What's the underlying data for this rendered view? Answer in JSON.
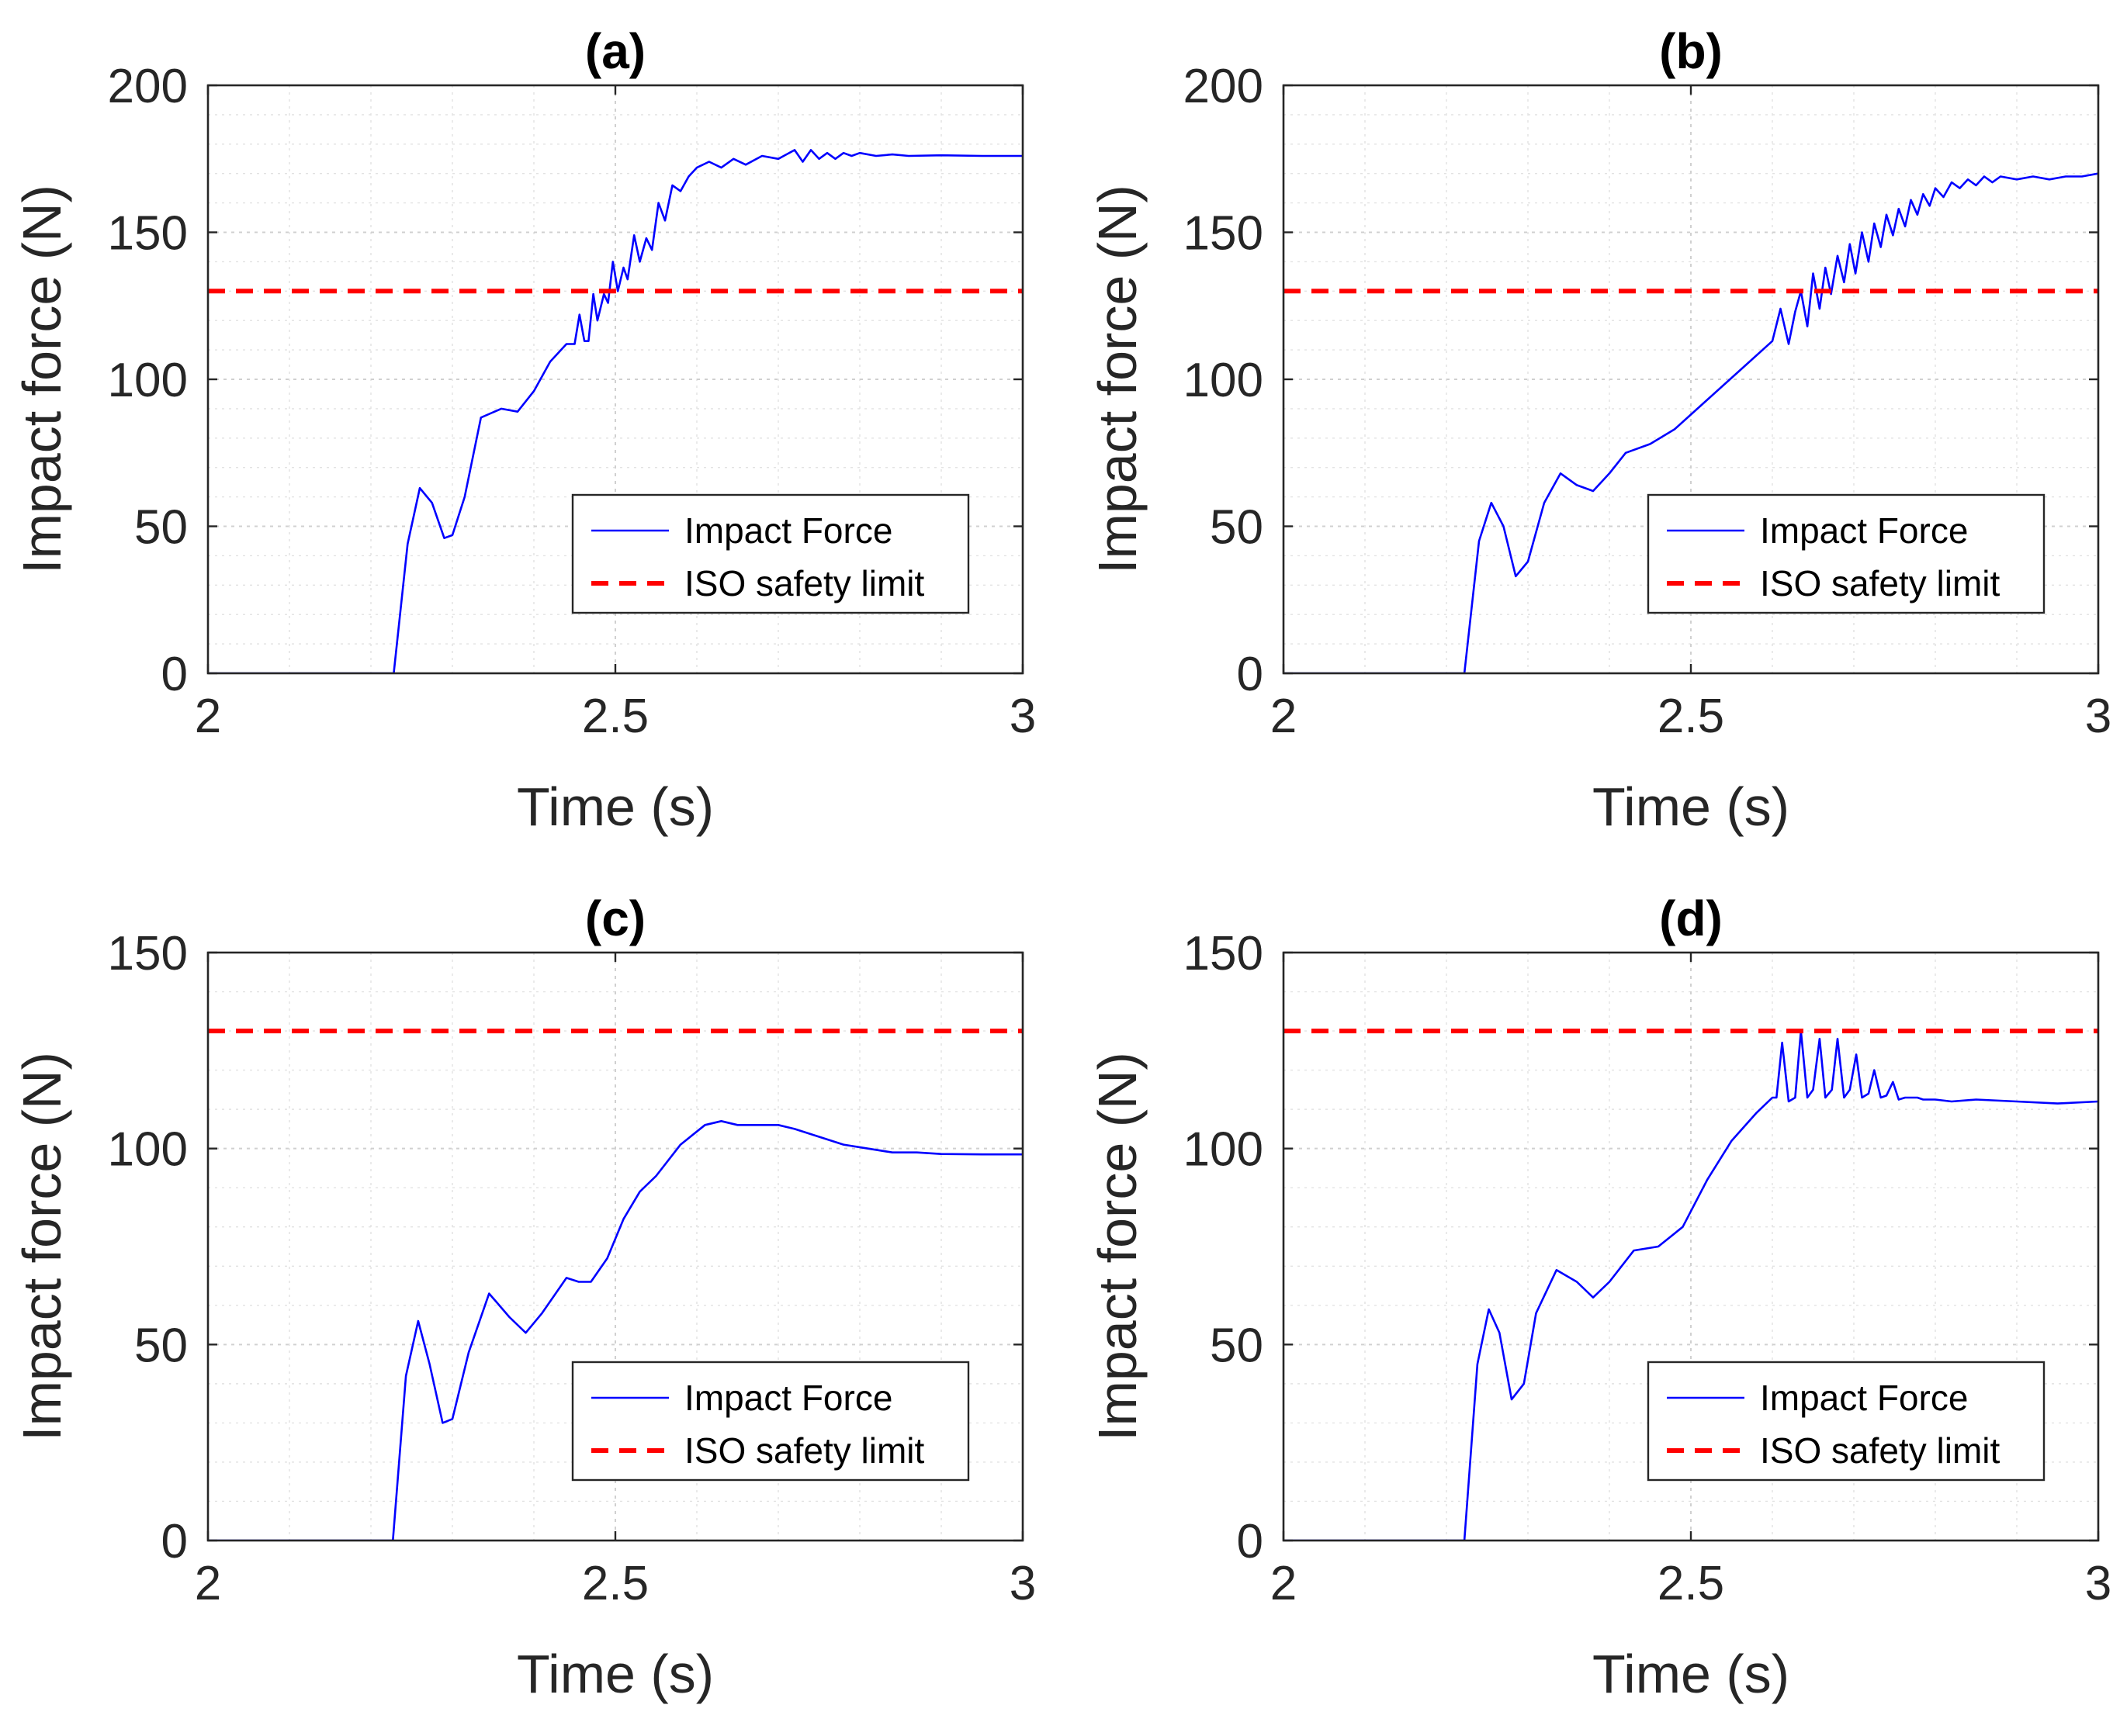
{
  "chart_data": [
    {
      "type": "line",
      "title": "(a)",
      "xlabel": "Time (s)",
      "ylabel": "Impact force (N)",
      "xlim": [
        2,
        3
      ],
      "ylim": [
        0,
        200
      ],
      "xticks": [
        2,
        2.5,
        3
      ],
      "xtick_labels": [
        "2",
        "2.5",
        "3"
      ],
      "yticks": [
        0,
        50,
        100,
        150,
        200
      ],
      "ytick_labels": [
        "0",
        "50",
        "100",
        "150",
        "200"
      ],
      "grid": true,
      "legend_position": "bottom-right",
      "series": [
        {
          "name": "Impact Force",
          "color": "#0000ff",
          "style": "solid",
          "x": [
            2.0,
            2.228,
            2.245,
            2.26,
            2.275,
            2.29,
            2.3,
            2.315,
            2.335,
            2.36,
            2.38,
            2.4,
            2.42,
            2.44,
            2.45,
            2.456,
            2.462,
            2.467,
            2.473,
            2.478,
            2.486,
            2.491,
            2.497,
            2.503,
            2.51,
            2.515,
            2.523,
            2.53,
            2.538,
            2.545,
            2.553,
            2.561,
            2.57,
            2.58,
            2.59,
            2.6,
            2.615,
            2.63,
            2.645,
            2.66,
            2.68,
            2.7,
            2.72,
            2.73,
            2.74,
            2.75,
            2.76,
            2.77,
            2.78,
            2.79,
            2.8,
            2.82,
            2.84,
            2.86,
            2.9,
            2.95,
            3.0
          ],
          "y": [
            0,
            0,
            44,
            63,
            58,
            46,
            47,
            60,
            87,
            90,
            89,
            96,
            106,
            112,
            112,
            122,
            113,
            113,
            129,
            120,
            129,
            126,
            140,
            130,
            138,
            134,
            149,
            140,
            148,
            144,
            160,
            154,
            166,
            164,
            169,
            172,
            174,
            172,
            175,
            173,
            176,
            175,
            178,
            174,
            178,
            175,
            177,
            175,
            177,
            176,
            177,
            176,
            176.5,
            176,
            176.2,
            176,
            176
          ]
        },
        {
          "name": "ISO safety limit",
          "color": "#ff0000",
          "style": "dashed",
          "x": [
            2,
            3
          ],
          "y": [
            130,
            130
          ]
        }
      ]
    },
    {
      "type": "line",
      "title": "(b)",
      "xlabel": "Time (s)",
      "ylabel": "Impact force (N)",
      "xlim": [
        2,
        3
      ],
      "ylim": [
        0,
        200
      ],
      "xticks": [
        2,
        2.5,
        3
      ],
      "xtick_labels": [
        "2",
        "2.5",
        "3"
      ],
      "yticks": [
        0,
        50,
        100,
        150,
        200
      ],
      "ytick_labels": [
        "0",
        "50",
        "100",
        "150",
        "200"
      ],
      "grid": true,
      "legend_position": "bottom-right",
      "series": [
        {
          "name": "Impact Force",
          "color": "#0000ff",
          "style": "solid",
          "x": [
            2.0,
            2.222,
            2.24,
            2.255,
            2.27,
            2.285,
            2.3,
            2.32,
            2.34,
            2.36,
            2.38,
            2.4,
            2.42,
            2.45,
            2.48,
            2.52,
            2.56,
            2.6,
            2.61,
            2.62,
            2.628,
            2.635,
            2.643,
            2.65,
            2.658,
            2.665,
            2.672,
            2.68,
            2.688,
            2.695,
            2.702,
            2.71,
            2.718,
            2.725,
            2.733,
            2.74,
            2.748,
            2.755,
            2.763,
            2.77,
            2.778,
            2.785,
            2.793,
            2.8,
            2.81,
            2.82,
            2.83,
            2.84,
            2.85,
            2.86,
            2.87,
            2.88,
            2.9,
            2.92,
            2.94,
            2.96,
            2.98,
            3.0
          ],
          "y": [
            0,
            0,
            45,
            58,
            50,
            33,
            38,
            58,
            68,
            64,
            62,
            68,
            75,
            78,
            83,
            93,
            103,
            113,
            124,
            112,
            123,
            130,
            118,
            136,
            124,
            138,
            129,
            142,
            133,
            146,
            136,
            150,
            140,
            153,
            145,
            156,
            149,
            158,
            152,
            161,
            156,
            163,
            159,
            165,
            162,
            167,
            165,
            168,
            166,
            169,
            167,
            169,
            168,
            169,
            168,
            169,
            169,
            170
          ]
        },
        {
          "name": "ISO safety limit",
          "color": "#ff0000",
          "style": "dashed",
          "x": [
            2,
            3
          ],
          "y": [
            130,
            130
          ]
        }
      ]
    },
    {
      "type": "line",
      "title": "(c)",
      "xlabel": "Time (s)",
      "ylabel": "Impact force (N)",
      "xlim": [
        2,
        3
      ],
      "ylim": [
        0,
        150
      ],
      "xticks": [
        2,
        2.5,
        3
      ],
      "xtick_labels": [
        "2",
        "2.5",
        "3"
      ],
      "yticks": [
        0,
        50,
        100,
        150
      ],
      "ytick_labels": [
        "0",
        "50",
        "100",
        "150"
      ],
      "grid": true,
      "legend_position": "bottom-right",
      "series": [
        {
          "name": "Impact Force",
          "color": "#0000ff",
          "style": "solid",
          "x": [
            2.0,
            2.227,
            2.243,
            2.258,
            2.272,
            2.288,
            2.3,
            2.32,
            2.345,
            2.37,
            2.39,
            2.41,
            2.44,
            2.455,
            2.47,
            2.49,
            2.51,
            2.53,
            2.55,
            2.58,
            2.61,
            2.63,
            2.65,
            2.67,
            2.7,
            2.72,
            2.75,
            2.78,
            2.81,
            2.84,
            2.87,
            2.9,
            2.95,
            3.0
          ],
          "y": [
            0,
            0,
            42,
            56,
            45,
            30,
            31,
            48,
            63,
            57,
            53,
            58,
            67,
            66,
            66,
            72,
            82,
            89,
            93,
            101,
            106,
            107,
            106,
            106,
            106,
            105,
            103,
            101,
            100,
            99,
            99,
            98.6,
            98.5,
            98.5
          ]
        },
        {
          "name": "ISO safety limit",
          "color": "#ff0000",
          "style": "dashed",
          "x": [
            2,
            3
          ],
          "y": [
            130,
            130
          ]
        }
      ]
    },
    {
      "type": "line",
      "title": "(d)",
      "xlabel": "Time (s)",
      "ylabel": "Impact force (N)",
      "xlim": [
        2,
        3
      ],
      "ylim": [
        0,
        150
      ],
      "xticks": [
        2,
        2.5,
        3
      ],
      "xtick_labels": [
        "2",
        "2.5",
        "3"
      ],
      "yticks": [
        0,
        50,
        100,
        150
      ],
      "ytick_labels": [
        "0",
        "50",
        "100",
        "150"
      ],
      "grid": true,
      "legend_position": "bottom-right",
      "series": [
        {
          "name": "Impact Force",
          "color": "#0000ff",
          "style": "solid",
          "x": [
            2.0,
            2.222,
            2.238,
            2.252,
            2.265,
            2.28,
            2.295,
            2.31,
            2.335,
            2.36,
            2.38,
            2.4,
            2.43,
            2.46,
            2.49,
            2.52,
            2.55,
            2.58,
            2.6,
            2.605,
            2.612,
            2.62,
            2.628,
            2.635,
            2.643,
            2.65,
            2.658,
            2.665,
            2.673,
            2.68,
            2.688,
            2.695,
            2.703,
            2.71,
            2.718,
            2.725,
            2.733,
            2.74,
            2.748,
            2.755,
            2.763,
            2.77,
            2.778,
            2.785,
            2.793,
            2.8,
            2.82,
            2.85,
            2.9,
            2.95,
            3.0
          ],
          "y": [
            0,
            0,
            45,
            59,
            53,
            36,
            40,
            58,
            69,
            66,
            62,
            66,
            74,
            75,
            80,
            92,
            102,
            109,
            113,
            113,
            127,
            112,
            113,
            130,
            113,
            115,
            128,
            113,
            115,
            128,
            113,
            115,
            124,
            113,
            114,
            120,
            113,
            113.5,
            117,
            112.5,
            113,
            113,
            113,
            112.5,
            112.5,
            112.5,
            112,
            112.5,
            112,
            111.5,
            112
          ]
        },
        {
          "name": "ISO safety limit",
          "color": "#ff0000",
          "style": "dashed",
          "x": [
            2,
            3
          ],
          "y": [
            130,
            130
          ]
        }
      ]
    }
  ]
}
